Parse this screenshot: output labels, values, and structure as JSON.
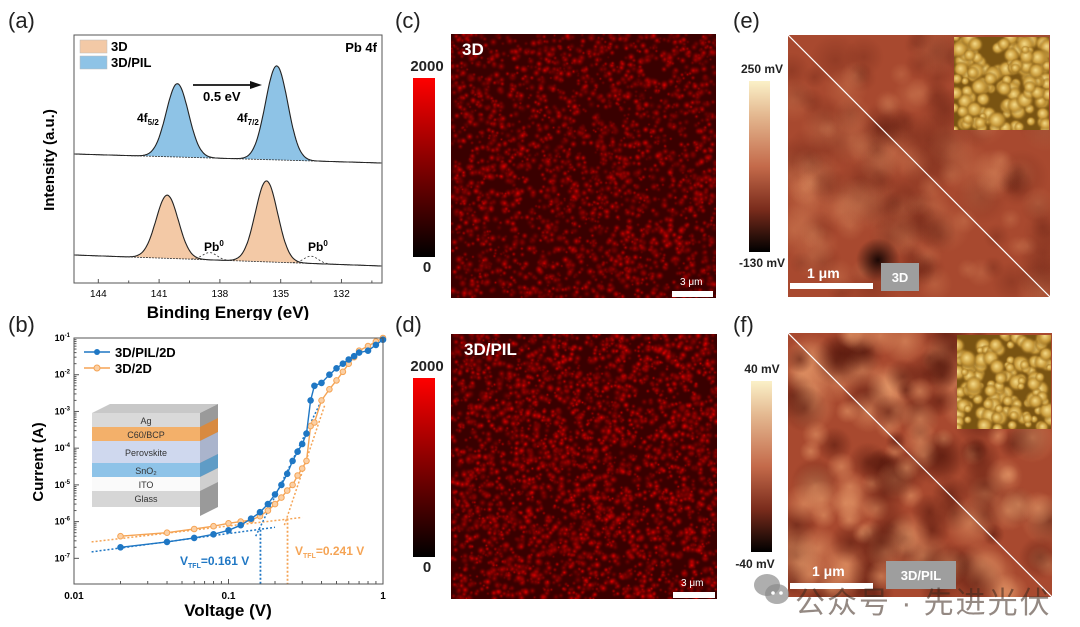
{
  "panels": {
    "a": {
      "label": "(a)",
      "corner_label": "Pb 4f",
      "shift_label": "0.5 eV",
      "peak_labels": {
        "f52_main": "4f",
        "f52_sub": "5/2",
        "f72_main": "4f",
        "f72_sub": "7/2",
        "pb0": "Pb",
        "pb0_sup": "0"
      },
      "legend": [
        {
          "name": "3D",
          "color": "#f3c9a6"
        },
        {
          "name": "3D/PIL",
          "color": "#8ec3e6"
        }
      ]
    },
    "b": {
      "label": "(b)",
      "legend": [
        {
          "name": "3D/PIL/2D",
          "color": "#1f77c4"
        },
        {
          "name": "3D/2D",
          "color": "#f5a455"
        }
      ],
      "vtfl_blue": {
        "main": "V",
        "sub": "TFL",
        "rest": "=0.161 V"
      },
      "vtfl_orange": {
        "main": "V",
        "sub": "TFL",
        "rest": "=0.241 V"
      },
      "device_layers": [
        "Ag",
        "C60/BCP",
        "Perovskite",
        "SnO₂",
        "ITO",
        "Glass"
      ]
    },
    "c": {
      "label": "(c)",
      "sample": "3D",
      "cbar_max": "2000",
      "cbar_min": "0",
      "scale": "3 μm"
    },
    "d": {
      "label": "(d)",
      "sample": "3D/PIL",
      "cbar_max": "2000",
      "cbar_min": "0",
      "scale": "3 μm"
    },
    "e": {
      "label": "(e)",
      "sample": "3D",
      "cbar_max": "250 mV",
      "cbar_min": "-130 mV",
      "scale": "1 μm"
    },
    "f": {
      "label": "(f)",
      "sample": "3D/PIL",
      "cbar_max": "40 mV",
      "cbar_min": "-40 mV",
      "scale": "1 μm"
    }
  },
  "watermark": "公众号 · 先进光伏",
  "chart_data": [
    {
      "type": "area",
      "title": "Pb 4f",
      "xlabel": "Binding Energy (eV)",
      "ylabel": "Intensity (a.u.)",
      "xlim": [
        145.2,
        130.0
      ],
      "x_reversed": true,
      "xticks": [
        144,
        141,
        138,
        135,
        132
      ],
      "series": [
        {
          "name": "3D/PIL",
          "peaks_eV": [
            140.1,
            135.2
          ],
          "relative_heights": [
            0.78,
            1.0
          ],
          "offset": "upper"
        },
        {
          "name": "3D",
          "peaks_eV": [
            140.6,
            135.7
          ],
          "relative_heights": [
            0.78,
            1.0
          ],
          "offset": "lower",
          "pb0_peaks_eV": [
            138.5,
            133.5
          ]
        }
      ],
      "annotations": [
        "4f5/2",
        "4f7/2",
        "0.5 eV shift",
        "Pb0",
        "Pb0"
      ]
    },
    {
      "type": "line",
      "xlabel": "Voltage (V)",
      "ylabel": "Current (A)",
      "xscale": "log",
      "yscale": "log",
      "xlim": [
        0.01,
        1
      ],
      "ylim": [
        2e-08,
        0.1
      ],
      "xticks": [
        "0.01",
        "0.1",
        "1"
      ],
      "yticks": [
        "10^-1",
        "10^-2",
        "10^-3",
        "10^-4",
        "10^-5",
        "10^-6",
        "10^-7"
      ],
      "series": [
        {
          "name": "3D/PIL/2D",
          "x": [
            0.02,
            0.04,
            0.06,
            0.08,
            0.1,
            0.12,
            0.14,
            0.16,
            0.18,
            0.2,
            0.22,
            0.24,
            0.26,
            0.28,
            0.3,
            0.32,
            0.34,
            0.36,
            0.4,
            0.45,
            0.5,
            0.55,
            0.6,
            0.65,
            0.7,
            0.8,
            0.9,
            1.0
          ],
          "y": [
            2e-07,
            2.8e-07,
            3.6e-07,
            4.5e-07,
            5.8e-07,
            8e-07,
            1.2e-06,
            1.8e-06,
            3e-06,
            5.5e-06,
            1e-05,
            2e-05,
            4.5e-05,
            8e-05,
            0.00013,
            0.00025,
            0.002,
            0.005,
            0.006,
            0.01,
            0.015,
            0.02,
            0.026,
            0.032,
            0.04,
            0.045,
            0.065,
            0.09
          ]
        },
        {
          "name": "3D/2D",
          "x": [
            0.02,
            0.04,
            0.06,
            0.08,
            0.1,
            0.12,
            0.14,
            0.16,
            0.18,
            0.2,
            0.22,
            0.24,
            0.26,
            0.28,
            0.3,
            0.32,
            0.34,
            0.36,
            0.4,
            0.45,
            0.5,
            0.55,
            0.6,
            0.65,
            0.7,
            0.8,
            0.9,
            1.0
          ],
          "y": [
            4e-07,
            5e-07,
            6.3e-07,
            7.5e-07,
            9e-07,
            1e-06,
            1.1e-06,
            1.4e-06,
            2e-06,
            3e-06,
            4.5e-06,
            7e-06,
            1e-05,
            1.8e-05,
            2.8e-05,
            4.5e-05,
            0.0004,
            0.0005,
            0.002,
            0.004,
            0.007,
            0.012,
            0.02,
            0.03,
            0.045,
            0.06,
            0.08,
            0.1
          ]
        }
      ],
      "fits": [
        {
          "series": "3D/PIL/2D",
          "V_TFL": 0.161
        },
        {
          "series": "3D/2D",
          "V_TFL": 0.241
        }
      ]
    }
  ]
}
